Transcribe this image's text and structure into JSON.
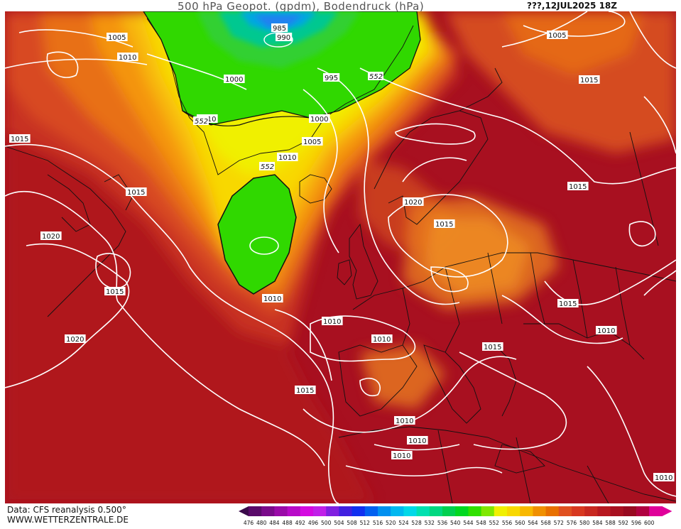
{
  "header": {
    "title": "500 hPa Geopot. (gpdm), Bodendruck (hPa)",
    "date": "???,12JUL2025 18Z"
  },
  "footer": {
    "data_source": "Data: CFS reanalysis 0.500°",
    "website": "WWW.WETTERZENTRALE.DE"
  },
  "map": {
    "region": "North Atlantic / Europe",
    "pressure_labels": [
      "985",
      "990",
      "995",
      "1000",
      "1000",
      "1005",
      "1005",
      "1005",
      "1010",
      "1010",
      "1010",
      "1010",
      "1010",
      "1010",
      "1010",
      "1010",
      "1010",
      "1010",
      "1010",
      "1015",
      "1015",
      "1015",
      "1015",
      "1015",
      "1015",
      "1015",
      "1015",
      "1015",
      "1020",
      "1020",
      "1020"
    ],
    "geopotential_labels": [
      "552",
      "552",
      "552"
    ]
  },
  "legend": {
    "values": [
      "476",
      "480",
      "484",
      "488",
      "492",
      "496",
      "500",
      "504",
      "508",
      "512",
      "516",
      "520",
      "524",
      "528",
      "532",
      "536",
      "540",
      "544",
      "548",
      "552",
      "556",
      "560",
      "564",
      "568",
      "572",
      "576",
      "580",
      "584",
      "588",
      "592",
      "596",
      "600"
    ],
    "colors": [
      "#3a0a4a",
      "#5a0a6a",
      "#7a0a8a",
      "#9a0aa8",
      "#b80ac8",
      "#d40ae0",
      "#c020e8",
      "#8020e0",
      "#4020e0",
      "#1030f0",
      "#0060f0",
      "#0090f0",
      "#00b8f0",
      "#00d8e8",
      "#00e0b0",
      "#00d880",
      "#00d050",
      "#00d820",
      "#30e000",
      "#80e800",
      "#f0f000",
      "#f8d800",
      "#f8b800",
      "#f09000",
      "#e87000",
      "#e05020",
      "#d83820",
      "#c82820",
      "#b81820",
      "#a81020",
      "#980a20",
      "#b00040",
      "#e0009a"
    ]
  }
}
